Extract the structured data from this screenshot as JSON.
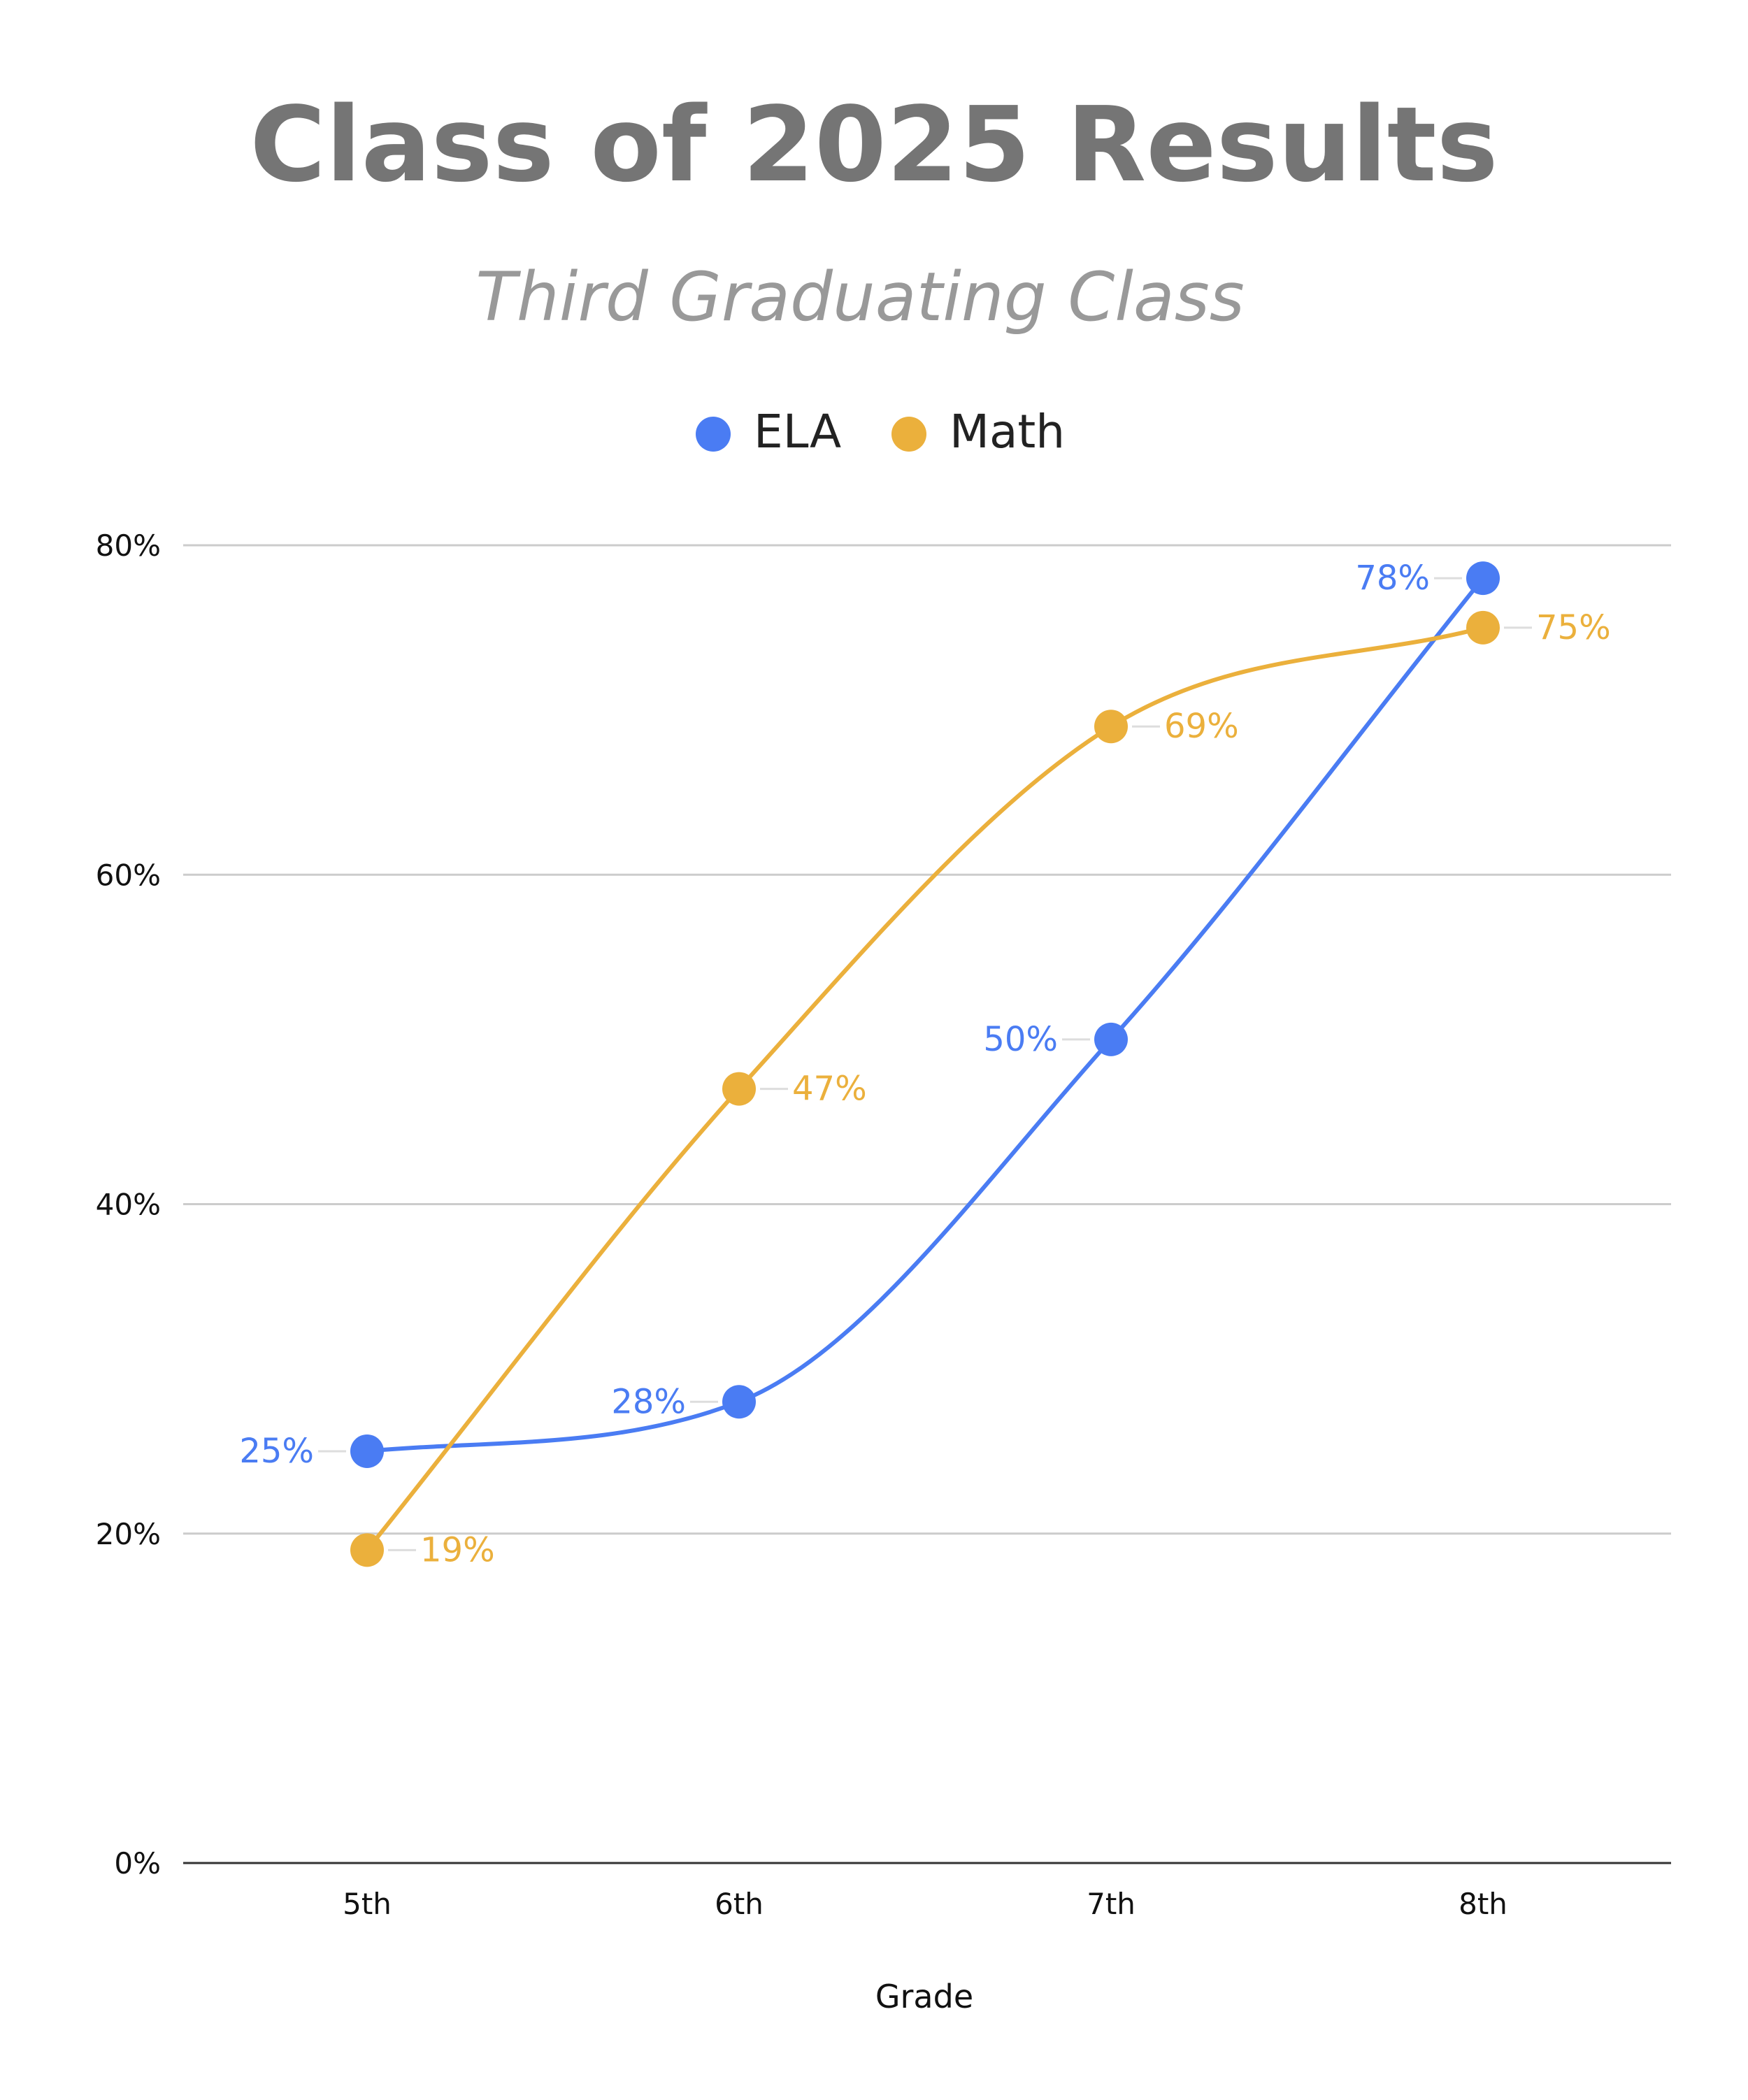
{
  "chart_data": {
    "type": "line",
    "title": "Class of 2025 Results",
    "subtitle": "Third Graduating Class",
    "xlabel": "Grade",
    "ylabel": "",
    "categories": [
      "5th",
      "6th",
      "7th",
      "8th"
    ],
    "ylim": [
      0,
      80
    ],
    "yticks": [
      0,
      20,
      40,
      60,
      80
    ],
    "ytick_labels": [
      "0%",
      "20%",
      "40%",
      "60%",
      "80%"
    ],
    "grid": true,
    "legend_position": "top-center",
    "smooth": true,
    "series": [
      {
        "name": "ELA",
        "color": "#4a7cf3",
        "values": [
          25,
          28,
          50,
          78
        ],
        "labels": [
          "25%",
          "28%",
          "50%",
          "78%"
        ],
        "label_side": "left"
      },
      {
        "name": "Math",
        "color": "#ebb03c",
        "values": [
          19,
          47,
          69,
          75
        ],
        "labels": [
          "19%",
          "47%",
          "69%",
          "75%"
        ],
        "label_side": "right"
      }
    ],
    "colors": {
      "title": "#757575",
      "subtitle": "#999999",
      "axis_text": "#111111",
      "grid": "#cccccc",
      "axis_line": "#333333",
      "legend_text": "#222222"
    }
  }
}
